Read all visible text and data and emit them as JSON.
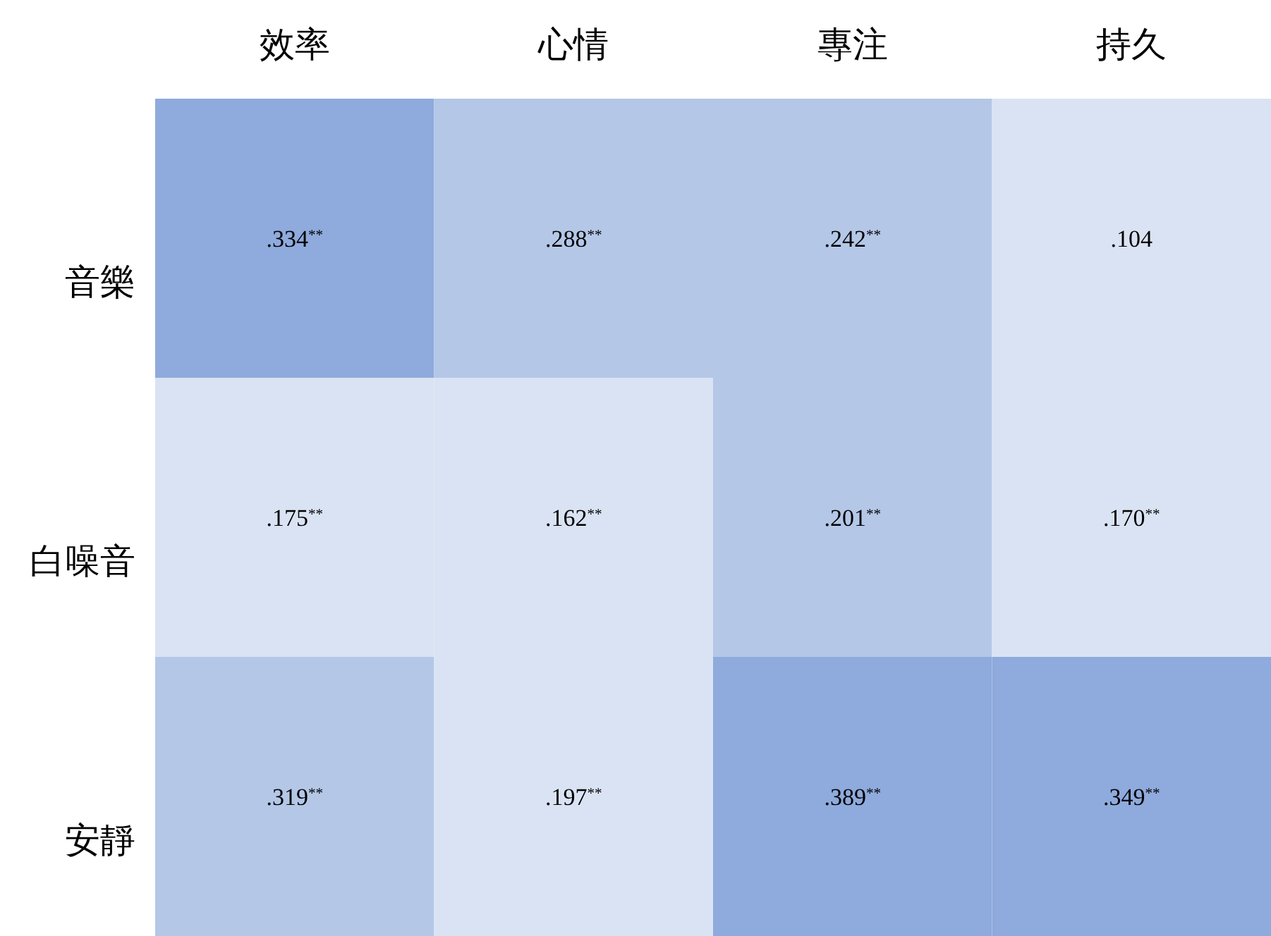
{
  "chart_data": {
    "type": "heatmap",
    "categories": [
      "效率",
      "心情",
      "專注",
      "持久"
    ],
    "y_categories": [
      "音樂",
      "白噪音",
      "安靜"
    ],
    "cells": [
      [
        0.334,
        0.288,
        0.242,
        0.104
      ],
      [
        0.175,
        0.162,
        0.201,
        0.17
      ],
      [
        0.319,
        0.197,
        0.389,
        0.349
      ]
    ],
    "cell_labels": [
      [
        ".334$^{**}$",
        ".288$^{**}$",
        ".242$^{**}$",
        ".104"
      ],
      [
        ".175$^{**}$",
        ".162$^{**}$",
        ".201$^{**}$",
        ".170$^{**}$"
      ],
      [
        ".319$^{**}$",
        ".197$^{**}$",
        ".389$^{**}$",
        ".349$^{**}$"
      ]
    ],
    "colors": [
      [
        "#8faadc",
        "#b4c7e7",
        "#b4c7e7",
        "#dae3f3"
      ],
      [
        "#dae3f3",
        "#dae3f3",
        "#b4c7e7",
        "#dae3f3"
      ],
      [
        "#b4c7e7",
        "#dae3f3",
        "#8faadc",
        "#8faadc"
      ]
    ]
  }
}
